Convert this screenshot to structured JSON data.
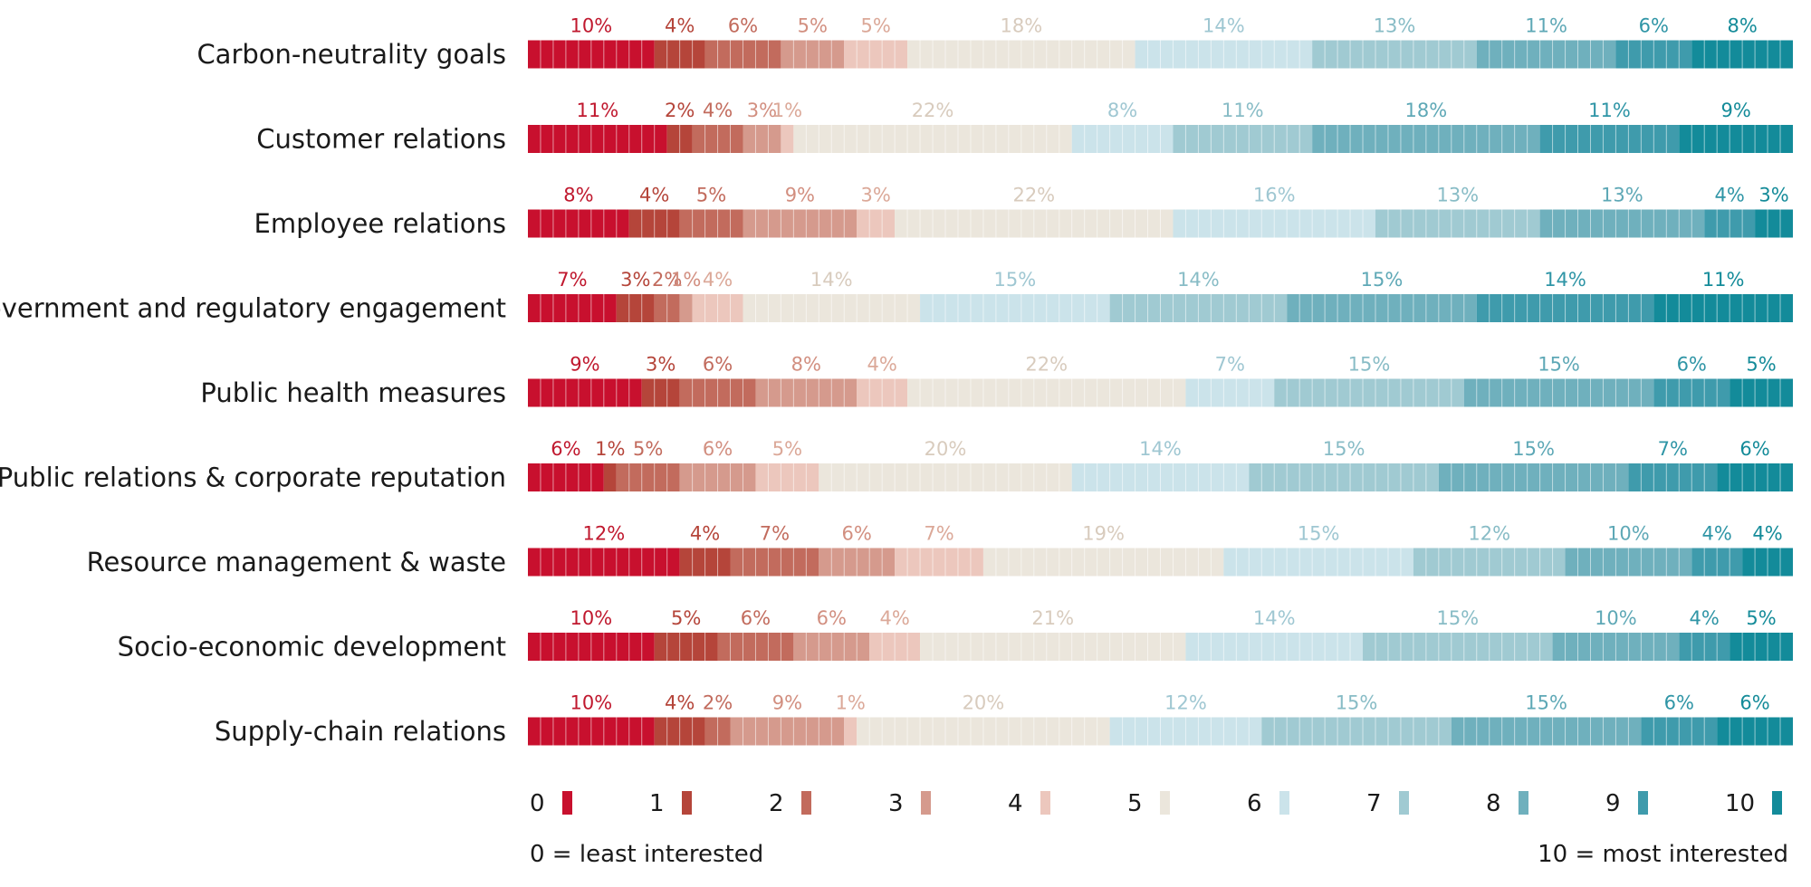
{
  "chart_data": {
    "type": "bar",
    "orientation": "horizontal",
    "stacked": true,
    "scale": "percent",
    "categories": [
      "Carbon-neutrality goals",
      "Customer relations",
      "Employee relations",
      "Government and regulatory engagement",
      "Public health measures",
      "Public relations & corporate reputation",
      "Resource management & waste",
      "Socio-economic development",
      "Supply-chain relations"
    ],
    "levels": [
      "0",
      "1",
      "2",
      "3",
      "4",
      "5",
      "6",
      "7",
      "8",
      "9",
      "10"
    ],
    "colors": [
      "#c8102e",
      "#b5453a",
      "#c26b5d",
      "#d59a8d",
      "#ecc7bd",
      "#ebe6dc",
      "#cbe3ea",
      "#a0cad2",
      "#6fb0bd",
      "#3f9bac",
      "#138b9a"
    ],
    "label_colors": [
      "#c0182e",
      "#b5453a",
      "#c26b5d",
      "#d28f80",
      "#dba898",
      "#d8cbbd",
      "#9fc7d2",
      "#88bcc6",
      "#5ea8b6",
      "#2f95a6",
      "#148b99"
    ],
    "values": [
      [
        10,
        4,
        6,
        5,
        5,
        18,
        14,
        13,
        11,
        6,
        8
      ],
      [
        11,
        2,
        4,
        3,
        1,
        22,
        8,
        11,
        18,
        11,
        9
      ],
      [
        8,
        4,
        5,
        9,
        3,
        22,
        16,
        13,
        13,
        4,
        3
      ],
      [
        7,
        3,
        2,
        1,
        4,
        14,
        15,
        14,
        15,
        14,
        11
      ],
      [
        9,
        3,
        6,
        8,
        4,
        22,
        7,
        15,
        15,
        6,
        5
      ],
      [
        6,
        1,
        5,
        6,
        5,
        20,
        14,
        15,
        15,
        7,
        6
      ],
      [
        12,
        4,
        7,
        6,
        7,
        19,
        15,
        12,
        10,
        4,
        4
      ],
      [
        10,
        5,
        6,
        6,
        4,
        21,
        14,
        15,
        10,
        4,
        5
      ],
      [
        10,
        4,
        2,
        9,
        1,
        20,
        12,
        15,
        15,
        6,
        6
      ]
    ],
    "value_suffix": "%",
    "legend_position": "bottom",
    "legend_notes": {
      "left": "0 = least interested",
      "right": "10 = most interested"
    }
  }
}
